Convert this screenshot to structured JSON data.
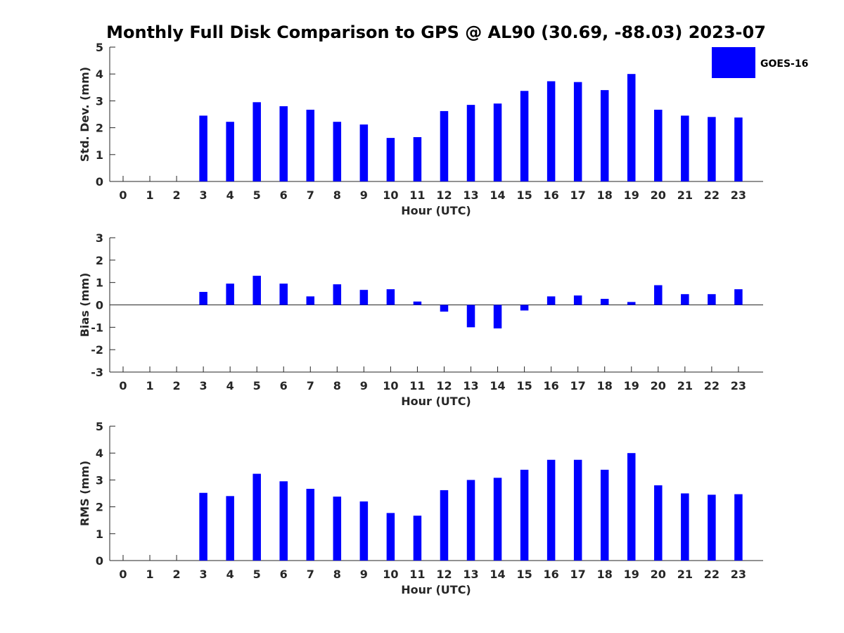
{
  "figure": {
    "title": "Monthly Full Disk Comparison to GPS @ AL90 (30.69, -88.03) 2023-07",
    "bar_color": "#0000ff",
    "legend": {
      "label": "GOES-16",
      "placement": "top-right"
    }
  },
  "chart_data": [
    {
      "type": "bar",
      "xlabel": "Hour (UTC)",
      "ylabel": "Std. Dev. (mm)",
      "ylim": [
        0,
        5
      ],
      "yticks": [
        0,
        1,
        2,
        3,
        4,
        5
      ],
      "categories": [
        "0",
        "1",
        "2",
        "3",
        "4",
        "5",
        "6",
        "7",
        "8",
        "9",
        "10",
        "11",
        "12",
        "13",
        "14",
        "15",
        "16",
        "17",
        "18",
        "19",
        "20",
        "21",
        "22",
        "23"
      ],
      "series": [
        {
          "name": "GOES-16",
          "values": [
            null,
            null,
            null,
            2.45,
            2.22,
            2.95,
            2.8,
            2.67,
            2.22,
            2.12,
            1.62,
            1.65,
            2.62,
            2.85,
            2.9,
            3.37,
            3.73,
            3.7,
            3.4,
            4.0,
            2.67,
            2.45,
            2.4,
            2.38
          ]
        }
      ]
    },
    {
      "type": "bar",
      "xlabel": "Hour (UTC)",
      "ylabel": "Bias (mm)",
      "ylim": [
        -3,
        3
      ],
      "yticks": [
        -3,
        -2,
        -1,
        0,
        1,
        2,
        3
      ],
      "categories": [
        "0",
        "1",
        "2",
        "3",
        "4",
        "5",
        "6",
        "7",
        "8",
        "9",
        "10",
        "11",
        "12",
        "13",
        "14",
        "15",
        "16",
        "17",
        "18",
        "19",
        "20",
        "21",
        "22",
        "23"
      ],
      "series": [
        {
          "name": "GOES-16",
          "values": [
            null,
            null,
            null,
            0.58,
            0.95,
            1.3,
            0.95,
            0.38,
            0.92,
            0.67,
            0.7,
            0.15,
            -0.3,
            -1.0,
            -1.05,
            -0.25,
            0.38,
            0.42,
            0.27,
            0.13,
            0.88,
            0.48,
            0.48,
            0.7
          ]
        }
      ]
    },
    {
      "type": "bar",
      "xlabel": "Hour (UTC)",
      "ylabel": "RMS (mm)",
      "ylim": [
        0,
        5
      ],
      "yticks": [
        0,
        1,
        2,
        3,
        4,
        5
      ],
      "categories": [
        "0",
        "1",
        "2",
        "3",
        "4",
        "5",
        "6",
        "7",
        "8",
        "9",
        "10",
        "11",
        "12",
        "13",
        "14",
        "15",
        "16",
        "17",
        "18",
        "19",
        "20",
        "21",
        "22",
        "23"
      ],
      "series": [
        {
          "name": "GOES-16",
          "values": [
            null,
            null,
            null,
            2.52,
            2.4,
            3.23,
            2.95,
            2.67,
            2.38,
            2.2,
            1.77,
            1.67,
            2.62,
            3.0,
            3.08,
            3.38,
            3.75,
            3.75,
            3.38,
            4.0,
            2.8,
            2.5,
            2.45,
            2.47
          ]
        }
      ]
    }
  ]
}
